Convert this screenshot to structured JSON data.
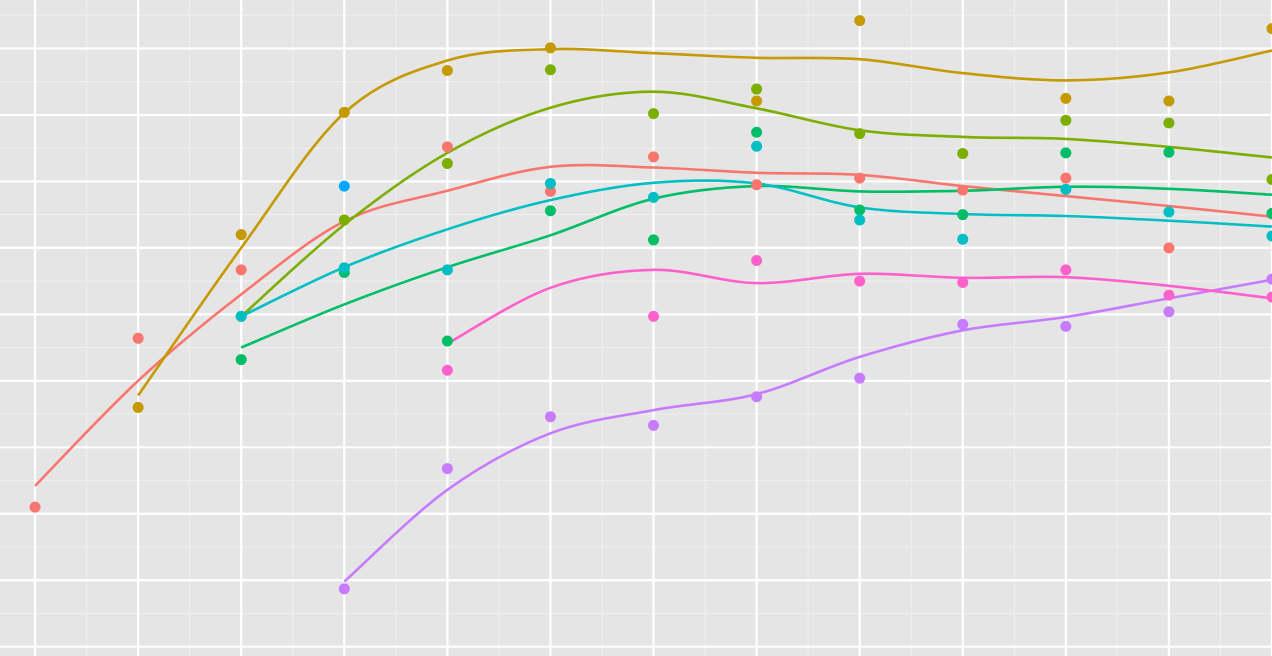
{
  "chart_data": {
    "type": "scatter",
    "title": "",
    "xlabel": "",
    "ylabel": "",
    "xlim": [
      0.66,
      13.0
    ],
    "ylim": [
      1.86,
      11.73
    ],
    "grid": true,
    "legend": "none",
    "x_gridlines": [
      1,
      2,
      3,
      4,
      5,
      6,
      7,
      8,
      9,
      10,
      11,
      12,
      13
    ],
    "y_gridlines": [
      2,
      3,
      4,
      5,
      6,
      7,
      8,
      9,
      10,
      11
    ],
    "series": [
      {
        "color": "#F8766D",
        "points": [
          [
            1,
            4.1
          ],
          [
            2,
            6.64
          ],
          [
            3,
            7.67
          ],
          [
            4,
            7.7
          ],
          [
            5,
            9.52
          ],
          [
            6,
            8.85
          ],
          [
            7,
            9.37
          ],
          [
            8,
            8.95
          ],
          [
            9,
            9.05
          ],
          [
            10,
            8.87
          ],
          [
            11,
            9.05
          ],
          [
            12,
            8.0
          ],
          [
            13,
            8.51
          ]
        ],
        "line": [
          [
            1,
            4.42
          ],
          [
            2,
            6.0
          ],
          [
            3,
            7.3
          ],
          [
            4,
            8.4
          ],
          [
            5,
            8.86
          ],
          [
            6,
            9.22
          ],
          [
            7,
            9.21
          ],
          [
            8,
            9.13
          ],
          [
            9,
            9.1
          ],
          [
            10,
            8.93
          ],
          [
            11,
            8.78
          ],
          [
            12,
            8.63
          ],
          [
            13,
            8.47
          ]
        ]
      },
      {
        "color": "#C49A00",
        "points": [
          [
            2,
            5.6
          ],
          [
            3,
            8.2
          ],
          [
            4,
            10.04
          ],
          [
            5,
            10.67
          ],
          [
            6,
            11.01
          ],
          [
            8,
            10.21
          ],
          [
            9,
            11.42
          ],
          [
            11,
            10.25
          ],
          [
            12,
            10.21
          ],
          [
            13,
            11.3
          ]
        ],
        "line": [
          [
            2,
            5.78
          ],
          [
            3,
            8.0
          ],
          [
            4,
            10.03
          ],
          [
            5,
            10.82
          ],
          [
            6,
            10.99
          ],
          [
            7,
            10.93
          ],
          [
            8,
            10.86
          ],
          [
            9,
            10.84
          ],
          [
            10,
            10.63
          ],
          [
            11,
            10.52
          ],
          [
            12,
            10.64
          ],
          [
            13,
            10.97
          ]
        ]
      },
      {
        "color": "#7CAE00",
        "points": [
          [
            3,
            6.97
          ],
          [
            4,
            8.42
          ],
          [
            5,
            9.27
          ],
          [
            6,
            10.68
          ],
          [
            7,
            10.02
          ],
          [
            8,
            10.39
          ],
          [
            9,
            9.72
          ],
          [
            10,
            9.42
          ],
          [
            11,
            9.92
          ],
          [
            12,
            9.88
          ],
          [
            13,
            9.03
          ]
        ],
        "line": [
          [
            3,
            6.97
          ],
          [
            4,
            8.35
          ],
          [
            5,
            9.43
          ],
          [
            6,
            10.11
          ],
          [
            7,
            10.35
          ],
          [
            8,
            10.1
          ],
          [
            9,
            9.77
          ],
          [
            10,
            9.67
          ],
          [
            11,
            9.64
          ],
          [
            12,
            9.52
          ],
          [
            13,
            9.36
          ]
        ]
      },
      {
        "color": "#00BE67",
        "points": [
          [
            3,
            6.32
          ],
          [
            4,
            7.63
          ],
          [
            5,
            6.6
          ],
          [
            6,
            8.56
          ],
          [
            7,
            8.12
          ],
          [
            8,
            9.74
          ],
          [
            9,
            8.57
          ],
          [
            10,
            8.5
          ],
          [
            11,
            9.43
          ],
          [
            12,
            9.44
          ],
          [
            13,
            8.52
          ]
        ],
        "line": [
          [
            3,
            6.5
          ],
          [
            4,
            7.15
          ],
          [
            5,
            7.71
          ],
          [
            6,
            8.19
          ],
          [
            7,
            8.74
          ],
          [
            8,
            8.93
          ],
          [
            9,
            8.85
          ],
          [
            10,
            8.86
          ],
          [
            11,
            8.92
          ],
          [
            12,
            8.89
          ],
          [
            13,
            8.8
          ]
        ]
      },
      {
        "color": "#00BFC4",
        "points": [
          [
            3,
            6.97
          ],
          [
            4,
            7.7
          ],
          [
            5,
            7.67
          ],
          [
            6,
            8.97
          ],
          [
            7,
            8.76
          ],
          [
            8,
            9.53
          ],
          [
            9,
            8.42
          ],
          [
            10,
            8.13
          ],
          [
            11,
            8.88
          ],
          [
            12,
            8.54
          ],
          [
            13,
            8.18
          ]
        ],
        "line": [
          [
            3,
            6.97
          ],
          [
            4,
            7.71
          ],
          [
            5,
            8.28
          ],
          [
            6,
            8.72
          ],
          [
            7,
            8.98
          ],
          [
            8,
            8.97
          ],
          [
            9,
            8.61
          ],
          [
            10,
            8.51
          ],
          [
            11,
            8.48
          ],
          [
            12,
            8.41
          ],
          [
            13,
            8.32
          ]
        ]
      },
      {
        "color": "#00A9FF",
        "points": [
          [
            4,
            8.93
          ]
        ],
        "line": []
      },
      {
        "color": "#C77CFF",
        "points": [
          [
            4,
            2.87
          ],
          [
            5,
            4.68
          ],
          [
            6,
            5.46
          ],
          [
            7,
            5.33
          ],
          [
            8,
            5.76
          ],
          [
            9,
            6.04
          ],
          [
            10,
            6.85
          ],
          [
            11,
            6.82
          ],
          [
            12,
            7.04
          ],
          [
            13,
            7.53
          ]
        ],
        "line": [
          [
            4,
            2.98
          ],
          [
            5,
            4.36
          ],
          [
            6,
            5.21
          ],
          [
            7,
            5.56
          ],
          [
            8,
            5.8
          ],
          [
            9,
            6.36
          ],
          [
            10,
            6.76
          ],
          [
            11,
            6.96
          ],
          [
            12,
            7.24
          ],
          [
            13,
            7.52
          ]
        ]
      },
      {
        "color": "#FF61CC",
        "points": [
          [
            5,
            6.16
          ],
          [
            7,
            6.97
          ],
          [
            8,
            7.81
          ],
          [
            9,
            7.5
          ],
          [
            10,
            7.48
          ],
          [
            11,
            7.67
          ],
          [
            12,
            7.29
          ],
          [
            13,
            7.26
          ]
        ],
        "line": [
          [
            5,
            6.56
          ],
          [
            6,
            7.4
          ],
          [
            7,
            7.67
          ],
          [
            8,
            7.47
          ],
          [
            9,
            7.61
          ],
          [
            10,
            7.55
          ],
          [
            11,
            7.56
          ],
          [
            12,
            7.43
          ],
          [
            13,
            7.24
          ]
        ]
      }
    ]
  }
}
